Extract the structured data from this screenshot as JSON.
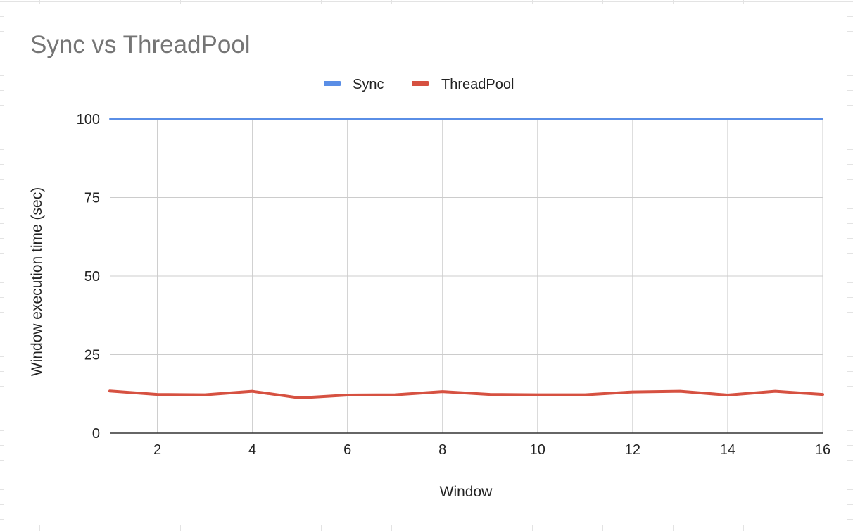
{
  "chart_data": {
    "type": "line",
    "title": "Sync vs ThreadPool",
    "xlabel": "Window",
    "ylabel": "Window execution time (sec)",
    "x": [
      1,
      2,
      3,
      4,
      5,
      6,
      7,
      8,
      9,
      10,
      11,
      12,
      13,
      14,
      15,
      16
    ],
    "xlim": [
      1,
      16
    ],
    "ylim": [
      0,
      100
    ],
    "x_ticks": [
      "2",
      "4",
      "6",
      "8",
      "10",
      "12",
      "14",
      "16"
    ],
    "y_ticks": [
      "0",
      "25",
      "50",
      "75",
      "100"
    ],
    "grid": true,
    "legend_position": "top",
    "series": [
      {
        "name": "Sync",
        "color": "#5a8ee6",
        "values": [
          100,
          100,
          100,
          100,
          100,
          100,
          100,
          100,
          100,
          100,
          100,
          100,
          100,
          100,
          100,
          100
        ]
      },
      {
        "name": "ThreadPool",
        "color": "#d65141",
        "values": [
          13.4,
          12.3,
          12.2,
          13.3,
          11.2,
          12.1,
          12.2,
          13.2,
          12.3,
          12.2,
          12.2,
          13.1,
          13.3,
          12.1,
          13.3,
          12.3
        ]
      }
    ]
  }
}
